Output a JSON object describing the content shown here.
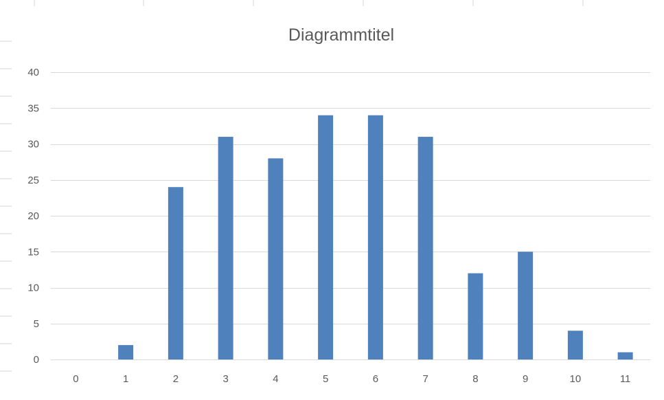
{
  "chart_data": {
    "type": "bar",
    "title": "Diagrammtitel",
    "xlabel": "",
    "ylabel": "",
    "categories": [
      "0",
      "1",
      "2",
      "3",
      "4",
      "5",
      "6",
      "7",
      "8",
      "9",
      "10",
      "11"
    ],
    "series": [
      {
        "values": [
          0,
          2,
          24,
          31,
          28,
          34,
          34,
          31,
          12,
          15,
          4,
          1
        ],
        "color": "#4f81bd"
      }
    ],
    "ylim": [
      0,
      40
    ],
    "yticks": [
      0,
      5,
      10,
      15,
      20,
      25,
      30,
      35,
      40
    ],
    "grid": true,
    "legend": "none"
  },
  "colors": {
    "bar": "#4f81bd",
    "gridline": "#d9d9d9",
    "text": "#595959",
    "cell_border": "#d4d4d4"
  }
}
